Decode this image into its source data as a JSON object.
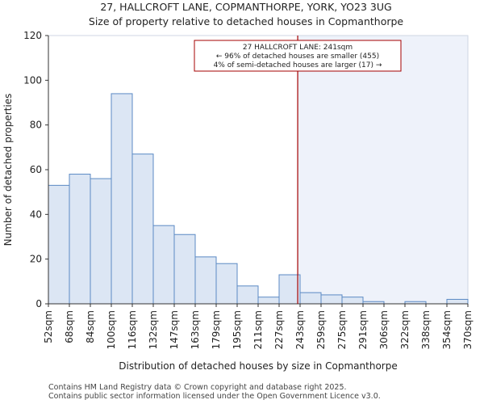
{
  "chart_data": {
    "type": "bar",
    "title": "27, HALLCROFT LANE, COPMANTHORPE, YORK, YO23 3UG",
    "subtitle": "Size of property relative to detached houses in Copmanthorpe",
    "xlabel": "Distribution of detached houses by size in Copmanthorpe",
    "ylabel": "Number of detached properties",
    "ylim": [
      0,
      120
    ],
    "yticks": [
      0,
      20,
      40,
      60,
      80,
      100,
      120
    ],
    "bin_edges": [
      52,
      68,
      84,
      100,
      116,
      132,
      147,
      163,
      179,
      195,
      211,
      227,
      243,
      259,
      275,
      291,
      306,
      322,
      338,
      354,
      370
    ],
    "tick_labels": [
      "52sqm",
      "68sqm",
      "84sqm",
      "100sqm",
      "116sqm",
      "132sqm",
      "147sqm",
      "163sqm",
      "179sqm",
      "195sqm",
      "211sqm",
      "227sqm",
      "243sqm",
      "259sqm",
      "275sqm",
      "291sqm",
      "306sqm",
      "322sqm",
      "338sqm",
      "354sqm",
      "370sqm"
    ],
    "values": [
      53,
      58,
      56,
      94,
      67,
      35,
      31,
      21,
      18,
      8,
      3,
      13,
      5,
      4,
      3,
      1,
      0,
      1,
      0,
      2
    ],
    "marker_value": 241,
    "annotation": {
      "line1": "27 HALLCROFT LANE: 241sqm",
      "line2": "← 96% of detached houses are smaller (455)",
      "line3": "4% of semi-detached houses are larger (17) →"
    },
    "colors": {
      "bar_fill": "#dce6f4",
      "bar_stroke": "#5b8ac4",
      "marker": "#a40000",
      "highlight_region": "#eef2fa"
    }
  },
  "footer": {
    "line1": "Contains HM Land Registry data © Crown copyright and database right 2025.",
    "line2": "Contains public sector information licensed under the Open Government Licence v3.0."
  }
}
